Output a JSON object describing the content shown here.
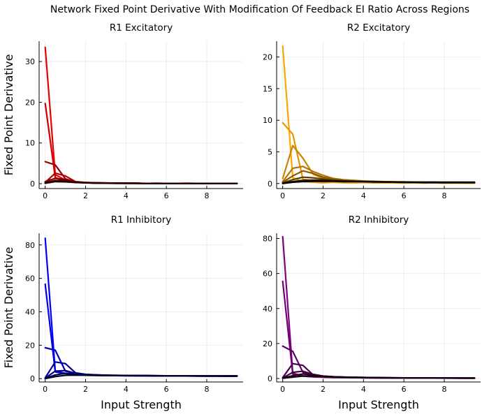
{
  "figure_title": "Network Fixed Point Derivative With Modification Of Feedback EI Ratio Across Regions",
  "chart_data": [
    {
      "type": "line",
      "title": "R1 Excitatory",
      "xlabel": "",
      "ylabel": "Fixed Point Derivative",
      "xlim": [
        -0.3,
        9.8
      ],
      "ylim": [
        -1.2,
        35
      ],
      "xticks": [
        0,
        2,
        4,
        6,
        8
      ],
      "yticks": [
        0,
        10,
        20,
        30
      ],
      "grid": true,
      "x": [
        0,
        0.5,
        1,
        1.5,
        2,
        2.5,
        3,
        3.5,
        4,
        4.5,
        5,
        5.5,
        6,
        6.5,
        7,
        7.5,
        8,
        8.5,
        9,
        9.5
      ],
      "series": [
        {
          "color": "#e60000",
          "values": [
            33.5,
            2.2,
            0.9,
            0.5,
            0.3,
            0.2,
            0.2,
            0.1,
            0.15,
            0.1,
            0.05,
            0.1,
            0.05,
            0.05,
            0.1,
            0.05,
            0.05,
            0.05,
            0.05,
            0.05
          ]
        },
        {
          "color": "#cc0000",
          "values": [
            19.7,
            1.5,
            0.6,
            0.3,
            0.2,
            0.1,
            0.1,
            0.05,
            0.05,
            0.05,
            0.05,
            0.05,
            0.05,
            0.05,
            0.05,
            0.05,
            0.05,
            0.05,
            0.05,
            0.05
          ]
        },
        {
          "color": "#990000",
          "values": [
            5.4,
            4.6,
            1.2,
            0.4,
            0.2,
            0.15,
            0.1,
            0.1,
            0.05,
            0.1,
            0.05,
            0.05,
            0.05,
            0.05,
            0.05,
            0.05,
            0.05,
            0.05,
            0.05,
            0.05
          ]
        },
        {
          "color": "#b30000",
          "values": [
            0.3,
            2.6,
            1.9,
            0.5,
            0.3,
            0.2,
            0.15,
            0.1,
            0.1,
            0.1,
            0.05,
            0.05,
            0.05,
            0.05,
            0.05,
            0.05,
            0.05,
            0.05,
            0.05,
            0.05
          ]
        },
        {
          "color": "#800000",
          "values": [
            0.5,
            1.3,
            1.0,
            0.4,
            0.3,
            0.2,
            0.15,
            0.1,
            0.1,
            0.1,
            0.05,
            0.05,
            0.05,
            0.05,
            0.05,
            0.05,
            0.05,
            0.05,
            0.05,
            0.05
          ]
        },
        {
          "color": "#4d0000",
          "values": [
            0.2,
            0.8,
            0.7,
            0.35,
            0.25,
            0.2,
            0.15,
            0.1,
            0.1,
            0.1,
            0.05,
            0.05,
            0.05,
            0.05,
            0.05,
            0.05,
            0.05,
            0.05,
            0.05,
            0.05
          ]
        },
        {
          "color": "#1a0000",
          "values": [
            0.1,
            0.5,
            0.45,
            0.3,
            0.2,
            0.15,
            0.1,
            0.1,
            0.1,
            0.05,
            0.05,
            0.05,
            0.05,
            0.05,
            0.05,
            0.05,
            0.05,
            0.05,
            0.05,
            0.05
          ]
        }
      ]
    },
    {
      "type": "line",
      "title": "R2 Excitatory",
      "xlabel": "",
      "ylabel": "",
      "xlim": [
        -0.3,
        9.8
      ],
      "ylim": [
        -0.8,
        22.5
      ],
      "xticks": [
        0,
        2,
        4,
        6,
        8
      ],
      "yticks": [
        0,
        5,
        10,
        15,
        20
      ],
      "grid": true,
      "x": [
        0,
        0.5,
        1,
        1.5,
        2,
        2.5,
        3,
        3.5,
        4,
        4.5,
        5,
        5.5,
        6,
        6.5,
        7,
        7.5,
        8,
        8.5,
        9,
        9.5
      ],
      "series": [
        {
          "color": "#ffa500",
          "values": [
            21.7,
            0.9,
            0.3,
            0.2,
            0.1,
            0.2,
            0.1,
            0.1,
            0.15,
            0.1,
            0.1,
            0.1,
            0.05,
            0.1,
            0.05,
            0.1,
            0.05,
            0.05,
            0.05,
            0.05
          ]
        },
        {
          "color": "#e69500",
          "values": [
            9.6,
            7.8,
            0.7,
            0.4,
            0.2,
            0.3,
            0.2,
            0.15,
            0.2,
            0.1,
            0.15,
            0.1,
            0.1,
            0.1,
            0.1,
            0.1,
            0.05,
            0.1,
            0.05,
            0.05
          ]
        },
        {
          "color": "#cc8400",
          "values": [
            0.8,
            6.0,
            4.0,
            1.5,
            0.8,
            0.5,
            0.4,
            0.3,
            0.3,
            0.2,
            0.2,
            0.2,
            0.15,
            0.15,
            0.1,
            0.1,
            0.1,
            0.1,
            0.1,
            0.1
          ]
        },
        {
          "color": "#b37400",
          "values": [
            0.3,
            2.4,
            2.7,
            1.9,
            1.3,
            0.8,
            0.6,
            0.5,
            0.4,
            0.35,
            0.3,
            0.25,
            0.2,
            0.2,
            0.15,
            0.15,
            0.1,
            0.1,
            0.1,
            0.1
          ]
        },
        {
          "color": "#8f5d00",
          "values": [
            0.2,
            1.2,
            2.0,
            1.6,
            1.0,
            0.7,
            0.5,
            0.4,
            0.35,
            0.3,
            0.25,
            0.2,
            0.2,
            0.15,
            0.15,
            0.1,
            0.1,
            0.1,
            0.1,
            0.1
          ]
        },
        {
          "color": "#5c3b00",
          "values": [
            0.1,
            0.6,
            1.0,
            0.9,
            0.7,
            0.5,
            0.4,
            0.35,
            0.3,
            0.25,
            0.2,
            0.2,
            0.15,
            0.15,
            0.1,
            0.1,
            0.1,
            0.1,
            0.1,
            0.1
          ]
        },
        {
          "color": "#2a1b00",
          "values": [
            0.05,
            0.3,
            0.5,
            0.55,
            0.5,
            0.45,
            0.4,
            0.35,
            0.3,
            0.3,
            0.25,
            0.25,
            0.2,
            0.2,
            0.2,
            0.2,
            0.15,
            0.15,
            0.15,
            0.15
          ]
        },
        {
          "color": "#000000",
          "values": [
            0.0,
            0.2,
            0.3,
            0.35,
            0.35,
            0.35,
            0.3,
            0.3,
            0.3,
            0.25,
            0.25,
            0.25,
            0.25,
            0.2,
            0.2,
            0.2,
            0.2,
            0.2,
            0.2,
            0.2
          ]
        }
      ]
    },
    {
      "type": "line",
      "title": "R1 Inhibitory",
      "xlabel": "Input Strength",
      "ylabel": "Fixed Point Derivative",
      "xlim": [
        -0.3,
        9.8
      ],
      "ylim": [
        -2,
        87
      ],
      "xticks": [
        0,
        2,
        4,
        6,
        8
      ],
      "yticks": [
        0,
        20,
        40,
        60,
        80
      ],
      "grid": true,
      "x": [
        0,
        0.5,
        1,
        1.5,
        2,
        2.5,
        3,
        3.5,
        4,
        4.5,
        5,
        5.5,
        6,
        6.5,
        7,
        7.5,
        8,
        8.5,
        9,
        9.5
      ],
      "series": [
        {
          "color": "#0000ff",
          "values": [
            84,
            4.5,
            3.2,
            2.6,
            2.3,
            2.1,
            2.0,
            1.9,
            1.9,
            1.8,
            1.8,
            1.7,
            1.7,
            1.7,
            1.6,
            1.6,
            1.6,
            1.6,
            1.6,
            1.6
          ]
        },
        {
          "color": "#0000e0",
          "values": [
            56.5,
            4.0,
            3.0,
            2.5,
            2.2,
            2.0,
            1.9,
            1.9,
            1.8,
            1.8,
            1.7,
            1.7,
            1.7,
            1.6,
            1.6,
            1.6,
            1.6,
            1.6,
            1.5,
            1.5
          ]
        },
        {
          "color": "#0000c0",
          "values": [
            18.5,
            17,
            4.5,
            3.0,
            2.5,
            2.2,
            2.0,
            1.9,
            1.9,
            1.8,
            1.8,
            1.7,
            1.7,
            1.7,
            1.6,
            1.6,
            1.6,
            1.6,
            1.6,
            1.6
          ]
        },
        {
          "color": "#0000a0",
          "values": [
            0.5,
            10,
            9.0,
            3.5,
            2.6,
            2.3,
            2.1,
            2.0,
            1.9,
            1.9,
            1.8,
            1.8,
            1.7,
            1.7,
            1.7,
            1.6,
            1.6,
            1.6,
            1.6,
            1.6
          ]
        },
        {
          "color": "#000080",
          "values": [
            0.3,
            4.5,
            4.8,
            3.2,
            2.5,
            2.2,
            2.0,
            1.9,
            1.9,
            1.8,
            1.8,
            1.7,
            1.7,
            1.7,
            1.6,
            1.6,
            1.6,
            1.6,
            1.6,
            1.6
          ]
        },
        {
          "color": "#000050",
          "values": [
            0.2,
            2.2,
            3.2,
            2.6,
            2.2,
            2.0,
            1.9,
            1.8,
            1.8,
            1.7,
            1.7,
            1.7,
            1.6,
            1.6,
            1.6,
            1.6,
            1.5,
            1.5,
            1.5,
            1.5
          ]
        },
        {
          "color": "#000020",
          "values": [
            0.1,
            1.2,
            2.0,
            2.1,
            2.0,
            1.9,
            1.8,
            1.8,
            1.7,
            1.7,
            1.7,
            1.6,
            1.6,
            1.6,
            1.6,
            1.5,
            1.5,
            1.5,
            1.5,
            1.5
          ]
        }
      ]
    },
    {
      "type": "line",
      "title": "R2 Inhibitory",
      "xlabel": "Input Strength",
      "ylabel": "",
      "xlim": [
        -0.3,
        9.8
      ],
      "ylim": [
        -2,
        83
      ],
      "xticks": [
        0,
        2,
        4,
        6,
        8
      ],
      "yticks": [
        0,
        20,
        40,
        60,
        80
      ],
      "grid": true,
      "x": [
        0,
        0.5,
        1,
        1.5,
        2,
        2.5,
        3,
        3.5,
        4,
        4.5,
        5,
        5.5,
        6,
        6.5,
        7,
        7.5,
        8,
        8.5,
        9,
        9.5
      ],
      "series": [
        {
          "color": "#800080",
          "values": [
            81,
            3.0,
            1.5,
            1.0,
            0.8,
            0.6,
            0.5,
            0.5,
            0.4,
            0.4,
            0.35,
            0.3,
            0.3,
            0.3,
            0.3,
            0.25,
            0.25,
            0.25,
            0.2,
            0.2
          ]
        },
        {
          "color": "#700070",
          "values": [
            55.5,
            2.5,
            1.3,
            0.9,
            0.7,
            0.55,
            0.5,
            0.45,
            0.4,
            0.35,
            0.3,
            0.3,
            0.3,
            0.25,
            0.25,
            0.25,
            0.2,
            0.2,
            0.2,
            0.2
          ]
        },
        {
          "color": "#600060",
          "values": [
            18.5,
            15.5,
            3.5,
            1.6,
            1.0,
            0.8,
            0.6,
            0.5,
            0.45,
            0.4,
            0.35,
            0.3,
            0.3,
            0.3,
            0.25,
            0.25,
            0.25,
            0.2,
            0.2,
            0.2
          ]
        },
        {
          "color": "#500050",
          "values": [
            0.5,
            8.5,
            7.5,
            2.2,
            1.2,
            0.9,
            0.7,
            0.6,
            0.5,
            0.45,
            0.4,
            0.35,
            0.3,
            0.3,
            0.3,
            0.25,
            0.25,
            0.25,
            0.2,
            0.2
          ]
        },
        {
          "color": "#400040",
          "values": [
            0.3,
            3.5,
            4.2,
            2.4,
            1.4,
            1.0,
            0.8,
            0.6,
            0.5,
            0.45,
            0.4,
            0.35,
            0.3,
            0.3,
            0.3,
            0.25,
            0.25,
            0.25,
            0.2,
            0.2
          ]
        },
        {
          "color": "#280028",
          "values": [
            0.2,
            1.6,
            2.6,
            2.0,
            1.4,
            1.0,
            0.8,
            0.7,
            0.6,
            0.5,
            0.45,
            0.4,
            0.35,
            0.3,
            0.3,
            0.3,
            0.25,
            0.25,
            0.25,
            0.25
          ]
        },
        {
          "color": "#100010",
          "values": [
            0.1,
            0.8,
            1.4,
            1.4,
            1.2,
            1.0,
            0.8,
            0.7,
            0.6,
            0.5,
            0.45,
            0.4,
            0.35,
            0.35,
            0.3,
            0.3,
            0.3,
            0.25,
            0.25,
            0.25
          ]
        }
      ]
    }
  ]
}
